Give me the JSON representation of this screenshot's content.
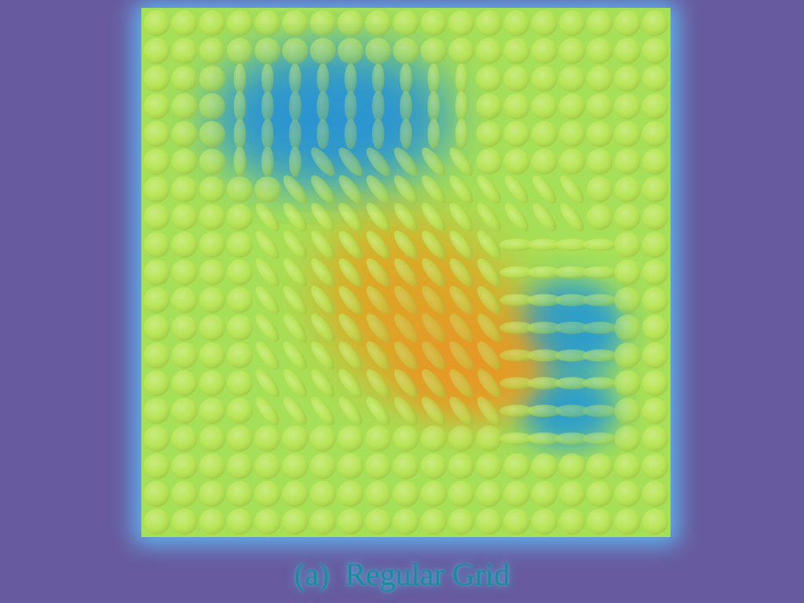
{
  "figure": {
    "caption_label": "(a)",
    "caption_text": "Regular Grid",
    "grid": {
      "rows": 19,
      "cols": 19
    },
    "colors": {
      "background": "#675a9e",
      "border_glow": "#5fb4f0",
      "grid_base": "#b9e64c",
      "highlight": "#e6a020",
      "low": "#1f9fc8"
    }
  }
}
